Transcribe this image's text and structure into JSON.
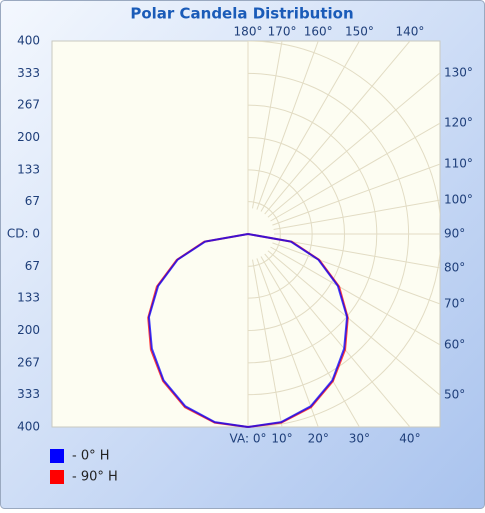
{
  "chart_data": {
    "type": "polar",
    "title": "Polar Candela Distribution",
    "angles": [
      0,
      10,
      20,
      30,
      40,
      50,
      60,
      70,
      80,
      90
    ],
    "series": [
      {
        "name": "- 0° H",
        "color": "#0000ff",
        "values": [
          400,
          396,
          380,
          350,
          310,
          268,
          215,
          155,
          90,
          0
        ]
      },
      {
        "name": "- 90° H",
        "color": "#ff0000",
        "values": [
          400,
          397,
          382,
          352,
          313,
          270,
          218,
          157,
          92,
          0
        ]
      }
    ],
    "ylim": [
      -400,
      400
    ],
    "yticks": [
      {
        "value": -400,
        "label": "400"
      },
      {
        "value": -333,
        "label": "333"
      },
      {
        "value": -267,
        "label": "267"
      },
      {
        "value": -200,
        "label": "200"
      },
      {
        "value": -133,
        "label": "133"
      },
      {
        "value": -67,
        "label": "67"
      },
      {
        "value": 0,
        "label": "CD: 0"
      },
      67,
      133,
      200,
      267,
      333,
      400
    ],
    "angle_ticks": [
      {
        "value": 0,
        "label": "VA: 0°"
      },
      {
        "value": 10,
        "label": "10°"
      },
      {
        "value": 20,
        "label": "20°"
      },
      {
        "value": 30,
        "label": "30°"
      },
      {
        "value": 40,
        "label": "40°"
      },
      {
        "value": 50,
        "label": "50°"
      },
      {
        "value": 60,
        "label": "60°"
      },
      {
        "value": 70,
        "label": "70°"
      },
      {
        "value": 80,
        "label": "80°"
      },
      {
        "value": 90,
        "label": "90°"
      },
      {
        "value": 100,
        "label": "100°"
      },
      {
        "value": 110,
        "label": "110°"
      },
      {
        "value": 120,
        "label": "120°"
      },
      {
        "value": 130,
        "label": "130°"
      },
      {
        "value": 140,
        "label": "140°"
      },
      {
        "value": 150,
        "label": "150°"
      },
      {
        "value": 160,
        "label": "160°"
      },
      {
        "value": 170,
        "label": "170°"
      },
      {
        "value": 180,
        "label": "180°"
      }
    ]
  }
}
